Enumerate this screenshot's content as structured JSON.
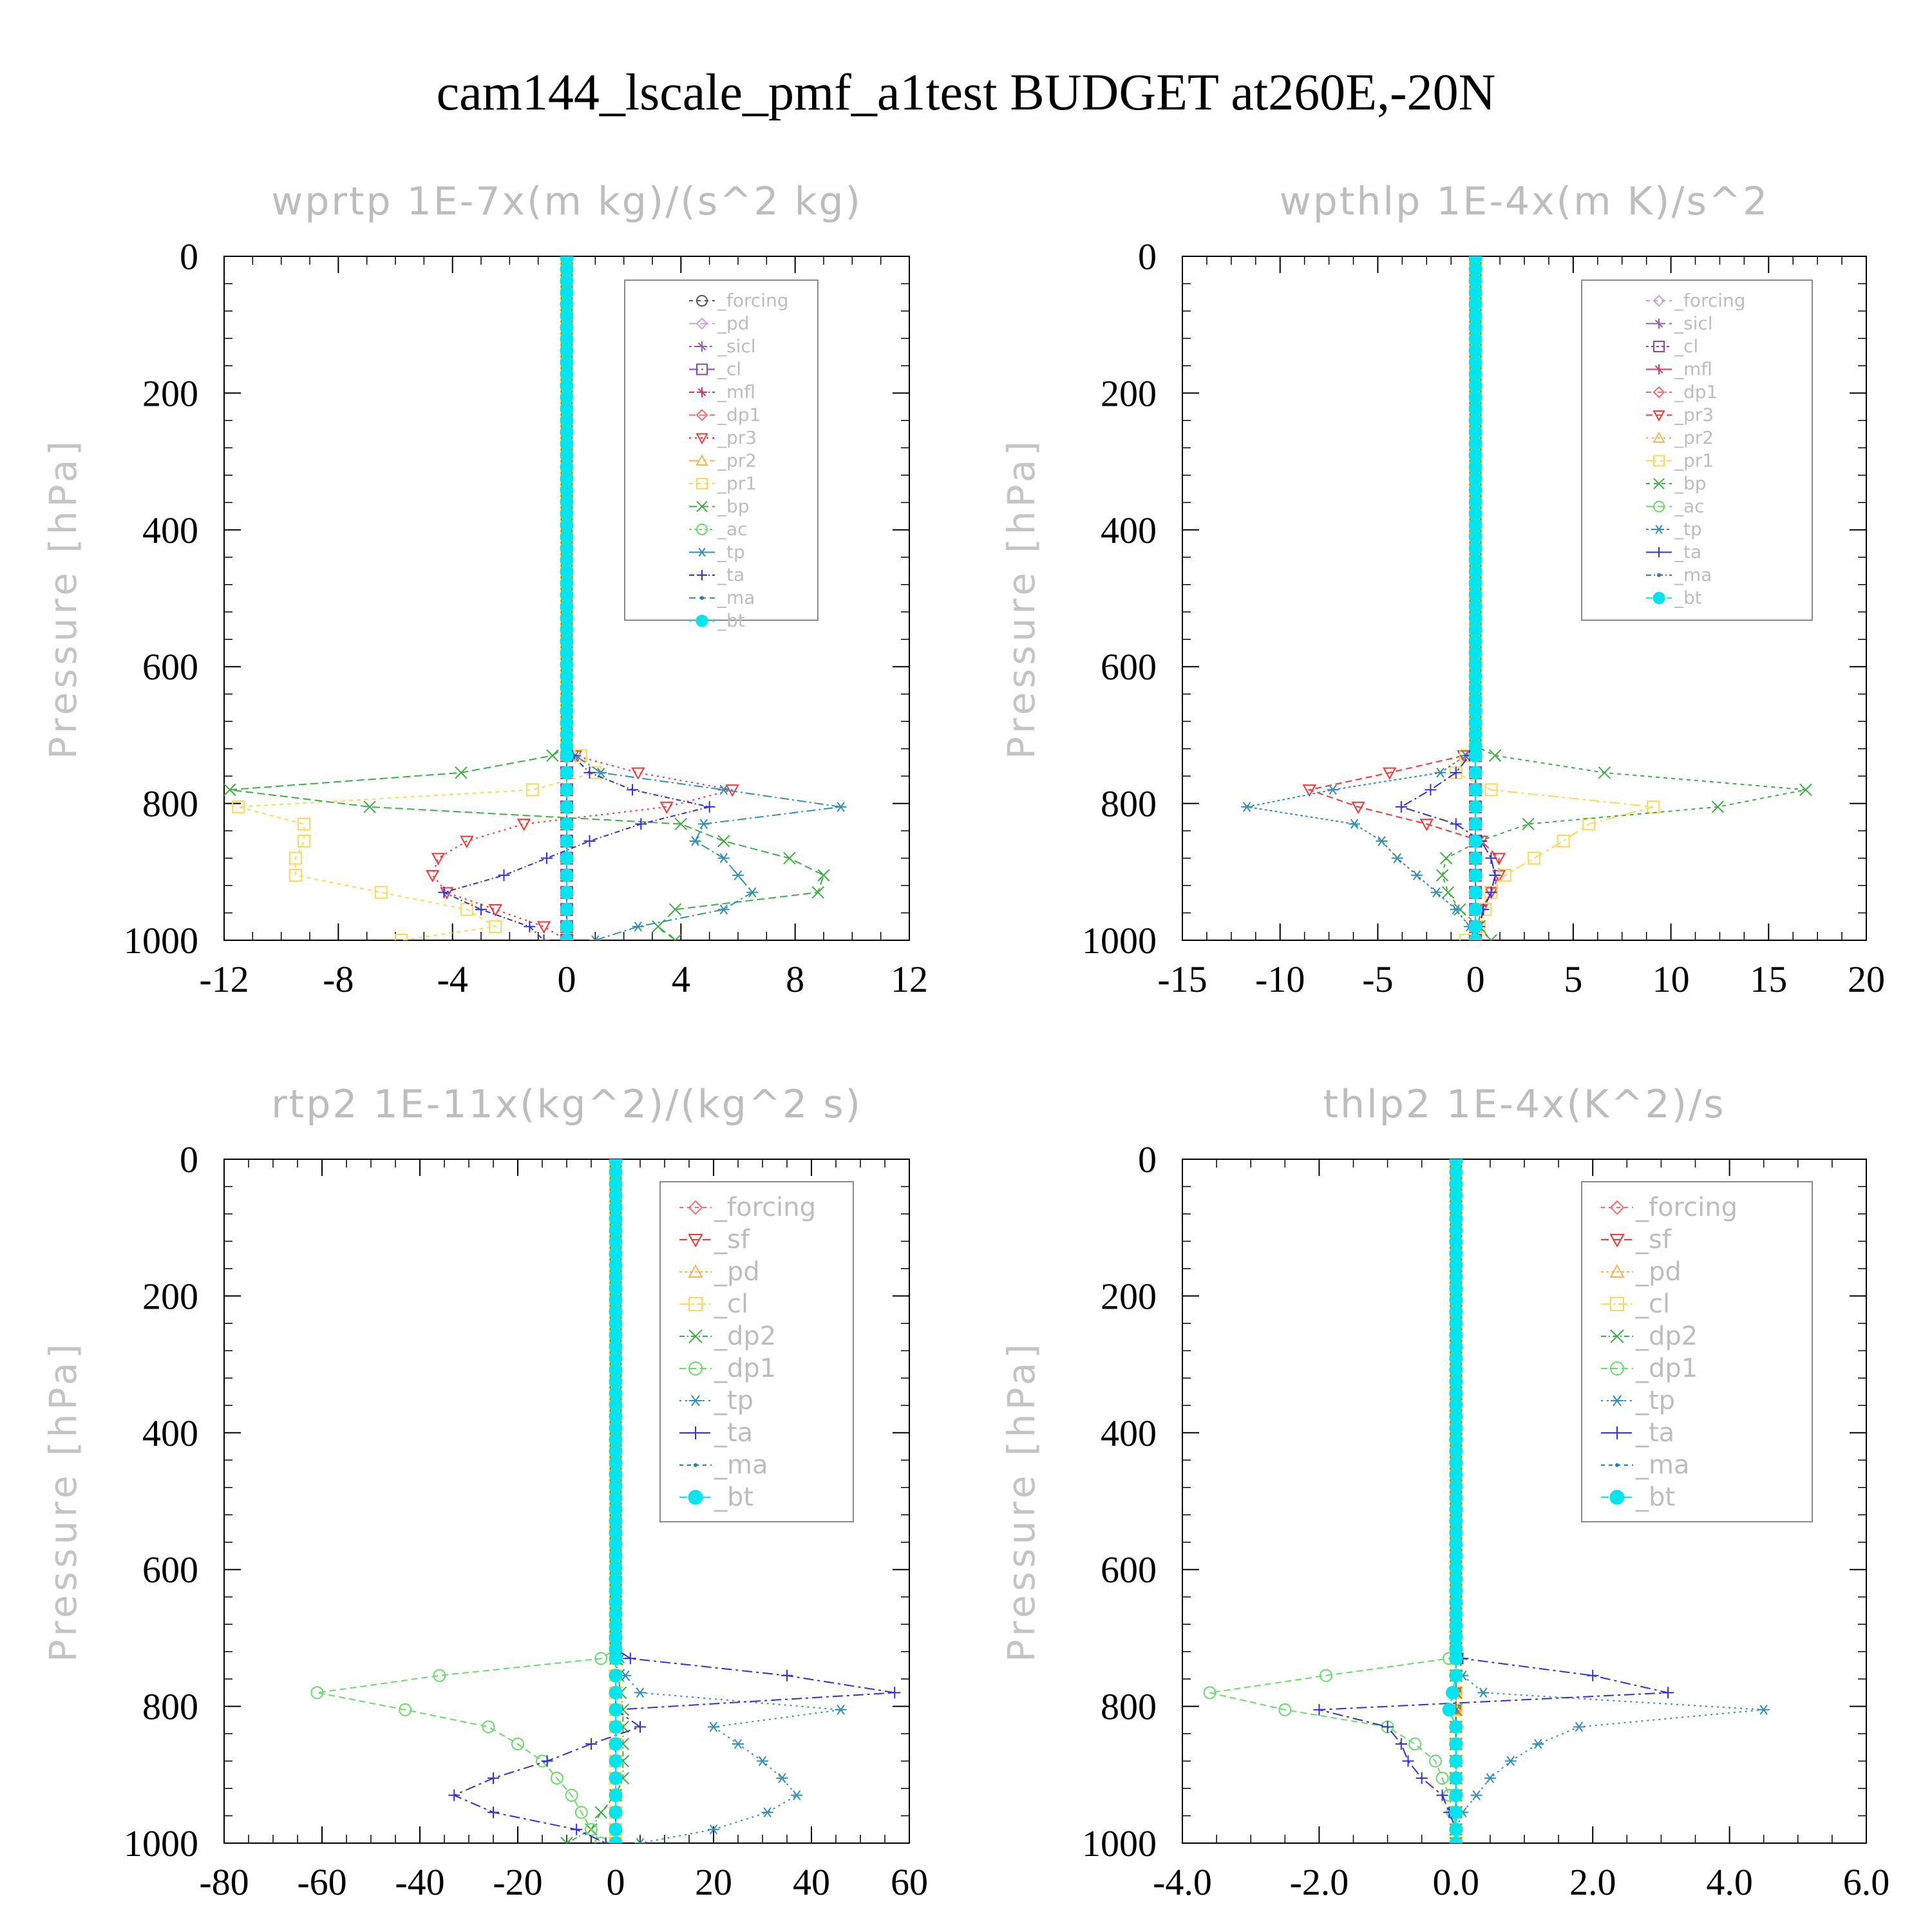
{
  "figure_title": "cam144_lscale_pmf_a1test  BUDGET at260E,-20N",
  "chart_data": [
    {
      "type": "line",
      "title": "wprtp   1E-7x(m kg)/(s^2 kg)",
      "ylabel": "Pressure [hPa]",
      "xlim": [
        -12,
        12
      ],
      "ylim": [
        1000,
        0
      ],
      "y_inverted": true,
      "xticks": [
        "-12",
        "-8",
        "-4",
        "0",
        "4",
        "8",
        "12"
      ],
      "yticks": [
        "0",
        "200",
        "400",
        "600",
        "800",
        "1000"
      ],
      "legend_position": "upper-right",
      "pressure_levels": [
        730,
        755,
        780,
        805,
        830,
        855,
        880,
        905,
        930,
        955,
        980,
        1000
      ],
      "series": [
        {
          "name": "_forcing",
          "color": "#555555",
          "marker": "circle",
          "values": [
            0,
            0,
            0,
            0,
            0,
            0,
            0,
            0,
            0,
            0,
            0,
            0
          ]
        },
        {
          "name": "_pd",
          "color": "#c8a0e0",
          "marker": "diamond",
          "values": [
            0,
            0,
            0,
            0,
            0,
            0,
            0,
            0,
            0,
            0,
            0,
            0
          ]
        },
        {
          "name": "_sicl",
          "color": "#9b59b6",
          "marker": "star",
          "values": [
            0,
            0,
            0,
            0,
            0,
            0,
            0,
            0,
            0,
            0,
            0,
            0
          ]
        },
        {
          "name": "_cl",
          "color": "#8e44ad",
          "marker": "square",
          "values": [
            0,
            0,
            0,
            0,
            0,
            0,
            0,
            0,
            0,
            0,
            0,
            0
          ]
        },
        {
          "name": "_mfl",
          "color": "#d0357a",
          "marker": "star",
          "values": [
            0,
            0,
            0,
            0,
            0,
            0,
            0,
            0,
            0,
            0,
            0,
            0
          ]
        },
        {
          "name": "_dp1",
          "color": "#ff6b6b",
          "marker": "diamond",
          "values": [
            0,
            0,
            0,
            0,
            0,
            0,
            0,
            0,
            0,
            0,
            0,
            0
          ]
        },
        {
          "name": "_pr3",
          "color": "#ff3333",
          "marker": "triangle-down",
          "values": [
            0.3,
            2.5,
            5.8,
            3.5,
            -1.5,
            -3.5,
            -4.5,
            -4.7,
            -4.2,
            -2.5,
            -0.8,
            0
          ]
        },
        {
          "name": "_pr2",
          "color": "#ffb347",
          "marker": "triangle-up",
          "values": [
            0,
            0,
            0,
            0,
            0,
            0,
            0,
            0,
            0,
            0,
            0,
            0
          ]
        },
        {
          "name": "_pr1",
          "color": "#ffd84d",
          "marker": "square",
          "values": [
            0.5,
            1.0,
            -1.2,
            -11.5,
            -9.2,
            -9.2,
            -9.5,
            -9.5,
            -6.5,
            -3.5,
            -2.5,
            -5.8
          ]
        },
        {
          "name": "_bp",
          "color": "#3cb043",
          "marker": "x",
          "values": [
            -0.5,
            -3.7,
            -11.8,
            -6.9,
            4.0,
            5.5,
            7.8,
            9.0,
            8.8,
            3.8,
            3.2,
            3.8
          ]
        },
        {
          "name": "_ac",
          "color": "#66dd66",
          "marker": "circle",
          "values": [
            0,
            0,
            0,
            0,
            0,
            0,
            0,
            0,
            0,
            0,
            0,
            0
          ]
        },
        {
          "name": "_tp",
          "color": "#2f8fbf",
          "marker": "asterisk",
          "values": [
            0.3,
            1.2,
            5.5,
            9.6,
            4.8,
            4.5,
            5.5,
            6.0,
            6.5,
            5.5,
            2.5,
            1.0
          ]
        },
        {
          "name": "_ta",
          "color": "#3030e0",
          "marker": "plus",
          "values": [
            0.2,
            0.8,
            2.3,
            5.0,
            2.6,
            0.8,
            -0.7,
            -2.2,
            -4.3,
            -3.0,
            -1.3,
            -0.8
          ]
        },
        {
          "name": "_ma",
          "color": "#2a7bb5",
          "marker": "dot",
          "values": [
            0,
            0,
            0,
            0,
            0,
            0,
            0,
            0,
            0,
            0,
            0,
            0
          ]
        },
        {
          "name": "_bt",
          "color": "#00e5ee",
          "marker": "filled-circle",
          "values": [
            0,
            0,
            0,
            0,
            0,
            0,
            0,
            0,
            0,
            0,
            0,
            0
          ]
        }
      ]
    },
    {
      "type": "line",
      "title": "wpthlp   1E-4x(m K)/s^2",
      "ylabel": "Pressure [hPa]",
      "xlim": [
        -15,
        20
      ],
      "ylim": [
        1000,
        0
      ],
      "y_inverted": true,
      "xticks": [
        "-15",
        "-10",
        "-5",
        "0",
        "5",
        "10",
        "15",
        "20"
      ],
      "yticks": [
        "0",
        "200",
        "400",
        "600",
        "800",
        "1000"
      ],
      "legend_position": "upper-right",
      "pressure_levels": [
        730,
        755,
        780,
        805,
        830,
        855,
        880,
        905,
        930,
        955,
        980,
        1000
      ],
      "series": [
        {
          "name": "_forcing",
          "color": "#c8a0e0",
          "marker": "diamond",
          "values": [
            0,
            0,
            0,
            0,
            0,
            0,
            0,
            0,
            0,
            0,
            0,
            0
          ]
        },
        {
          "name": "_sicl",
          "color": "#9b59b6",
          "marker": "star",
          "values": [
            0,
            0,
            0,
            0,
            0,
            0,
            0,
            0,
            0,
            0,
            0,
            0
          ]
        },
        {
          "name": "_cl",
          "color": "#8e44ad",
          "marker": "square",
          "values": [
            0,
            0,
            0,
            0,
            0,
            0,
            0,
            0,
            0,
            0,
            0,
            0
          ]
        },
        {
          "name": "_mfl",
          "color": "#d0357a",
          "marker": "star",
          "values": [
            0,
            0,
            0,
            0,
            0,
            0,
            0,
            0,
            0,
            0,
            0,
            0
          ]
        },
        {
          "name": "_dp1",
          "color": "#ff6b6b",
          "marker": "diamond",
          "values": [
            0,
            0,
            0,
            0,
            0,
            0,
            0,
            0,
            0,
            0,
            0,
            0
          ]
        },
        {
          "name": "_pr3",
          "color": "#ff3333",
          "marker": "triangle-down",
          "values": [
            -0.6,
            -4.4,
            -8.5,
            -6.0,
            -2.5,
            0.3,
            1.2,
            1.2,
            0.8,
            0.3,
            0.1,
            0
          ]
        },
        {
          "name": "_pr2",
          "color": "#ffb347",
          "marker": "triangle-up",
          "values": [
            0,
            0,
            0,
            0,
            0,
            0,
            0,
            0,
            0,
            0,
            0,
            0
          ]
        },
        {
          "name": "_pr1",
          "color": "#ffd84d",
          "marker": "square",
          "values": [
            -0.5,
            -1.0,
            0.8,
            9.1,
            5.8,
            4.5,
            3.0,
            1.5,
            0.8,
            0.5,
            0.2,
            -0.5
          ]
        },
        {
          "name": "_bp",
          "color": "#3cb043",
          "marker": "x",
          "values": [
            1.0,
            6.6,
            16.9,
            12.4,
            2.7,
            0.2,
            -1.5,
            -1.7,
            -1.4,
            -0.8,
            0.2,
            0.8
          ]
        },
        {
          "name": "_ac",
          "color": "#66dd66",
          "marker": "circle",
          "values": [
            0,
            0,
            0,
            0,
            0,
            0,
            0,
            0,
            0,
            0,
            0,
            0
          ]
        },
        {
          "name": "_tp",
          "color": "#2f8fbf",
          "marker": "asterisk",
          "values": [
            -0.5,
            -1.8,
            -7.3,
            -11.7,
            -6.2,
            -4.8,
            -4.0,
            -3.0,
            -2.0,
            -1.0,
            -0.3,
            0
          ]
        },
        {
          "name": "_ta",
          "color": "#3030e0",
          "marker": "plus",
          "values": [
            -0.3,
            -1.0,
            -2.3,
            -3.8,
            -1.0,
            0.3,
            0.8,
            1.0,
            0.8,
            0.4,
            0.2,
            0
          ]
        },
        {
          "name": "_ma",
          "color": "#2a7bb5",
          "marker": "dot",
          "values": [
            0,
            0,
            0,
            0,
            0,
            0,
            0,
            0,
            0,
            0,
            0,
            0
          ]
        },
        {
          "name": "_bt",
          "color": "#00e5ee",
          "marker": "filled-circle",
          "values": [
            0,
            0,
            0,
            0,
            0,
            0,
            0,
            0,
            0,
            0,
            0,
            0
          ]
        }
      ]
    },
    {
      "type": "line",
      "title": "rtp2   1E-11x(kg^2)/(kg^2 s)",
      "ylabel": "Pressure [hPa]",
      "xlim": [
        -80,
        60
      ],
      "ylim": [
        1000,
        0
      ],
      "y_inverted": true,
      "xticks": [
        "-80",
        "-60",
        "-40",
        "-20",
        "0",
        "20",
        "40",
        "60"
      ],
      "yticks": [
        "0",
        "200",
        "400",
        "600",
        "800",
        "1000"
      ],
      "legend_position": "upper-right",
      "pressure_levels": [
        730,
        755,
        780,
        805,
        830,
        855,
        880,
        905,
        930,
        955,
        980,
        1000
      ],
      "series": [
        {
          "name": "_forcing",
          "color": "#ff6b6b",
          "marker": "diamond",
          "values": [
            0,
            0,
            0,
            0,
            0,
            0,
            0,
            0,
            0,
            0,
            0,
            0
          ]
        },
        {
          "name": "_sf",
          "color": "#ff3333",
          "marker": "triangle-down",
          "values": [
            0,
            0,
            0,
            0,
            0,
            0,
            0,
            0,
            0,
            0,
            0,
            0
          ]
        },
        {
          "name": "_pd",
          "color": "#ffb347",
          "marker": "triangle-up",
          "values": [
            0,
            0,
            0,
            0,
            0,
            0,
            0,
            0,
            0,
            0,
            0,
            0
          ]
        },
        {
          "name": "_cl",
          "color": "#ffd84d",
          "marker": "square",
          "values": [
            0,
            0,
            0,
            0,
            0,
            0,
            0,
            0,
            0,
            0,
            0,
            0
          ]
        },
        {
          "name": "_dp2",
          "color": "#3cb043",
          "marker": "x",
          "values": [
            0,
            0.5,
            1,
            1.5,
            1.5,
            1.5,
            1.5,
            1.5,
            0,
            -3,
            -5,
            -10
          ]
        },
        {
          "name": "_dp1",
          "color": "#66dd66",
          "marker": "circle",
          "values": [
            -3,
            -36,
            -61,
            -43,
            -26,
            -20,
            -15,
            -12,
            -9,
            -7,
            -5,
            -3
          ]
        },
        {
          "name": "_tp",
          "color": "#2f8fbf",
          "marker": "asterisk",
          "values": [
            1,
            2,
            5,
            46,
            20,
            25,
            30,
            34,
            37,
            31,
            20,
            5
          ]
        },
        {
          "name": "_ta",
          "color": "#3030e0",
          "marker": "plus",
          "values": [
            3,
            35,
            57,
            0,
            5,
            -5,
            -14,
            -25,
            -33,
            -25,
            -8,
            -2
          ]
        },
        {
          "name": "_ma",
          "color": "#2a7bb5",
          "marker": "dot",
          "values": [
            0,
            0,
            0,
            0,
            0,
            0,
            0,
            0,
            0,
            0,
            0,
            0
          ]
        },
        {
          "name": "_bt",
          "color": "#00e5ee",
          "marker": "filled-circle",
          "values": [
            0,
            0,
            0,
            0,
            0,
            0,
            0,
            0,
            0,
            0,
            0,
            0
          ]
        }
      ]
    },
    {
      "type": "line",
      "title": "thlp2   1E-4x(K^2)/s",
      "ylabel": "Pressure [hPa]",
      "xlim": [
        -4.0,
        6.0
      ],
      "ylim": [
        1000,
        0
      ],
      "y_inverted": true,
      "xticks": [
        "-4.0",
        "-2.0",
        "0.0",
        "2.0",
        "4.0",
        "6.0"
      ],
      "yticks": [
        "0",
        "200",
        "400",
        "600",
        "800",
        "1000"
      ],
      "legend_position": "upper-right",
      "pressure_levels": [
        730,
        755,
        780,
        805,
        830,
        855,
        880,
        905,
        930,
        955,
        980,
        1000
      ],
      "series": [
        {
          "name": "_forcing",
          "color": "#ff6b6b",
          "marker": "diamond",
          "values": [
            0,
            0,
            0,
            0,
            0,
            0,
            0,
            0,
            0,
            0,
            0,
            0
          ]
        },
        {
          "name": "_sf",
          "color": "#ff3333",
          "marker": "triangle-down",
          "values": [
            0,
            0,
            0,
            0,
            0,
            0,
            0,
            0,
            0,
            0,
            0,
            0
          ]
        },
        {
          "name": "_pd",
          "color": "#ffb347",
          "marker": "triangle-up",
          "values": [
            0,
            0,
            0,
            0,
            0,
            0,
            0,
            0,
            0,
            0,
            0,
            0
          ]
        },
        {
          "name": "_cl",
          "color": "#ffd84d",
          "marker": "square",
          "values": [
            0,
            0,
            0,
            0,
            0,
            0,
            0,
            0,
            0,
            0,
            0,
            0
          ]
        },
        {
          "name": "_dp2",
          "color": "#3cb043",
          "marker": "x",
          "values": [
            0,
            0,
            0,
            0,
            0,
            0,
            0,
            0,
            0,
            0,
            0,
            0
          ]
        },
        {
          "name": "_dp1",
          "color": "#66dd66",
          "marker": "circle",
          "values": [
            -0.1,
            -1.9,
            -3.6,
            -2.5,
            -1.0,
            -0.6,
            -0.3,
            -0.2,
            -0.1,
            -0.05,
            0,
            0
          ]
        },
        {
          "name": "_tp",
          "color": "#2f8fbf",
          "marker": "asterisk",
          "values": [
            0.05,
            0.1,
            0.4,
            4.5,
            1.8,
            1.2,
            0.8,
            0.5,
            0.3,
            0.1,
            0,
            0
          ]
        },
        {
          "name": "_ta",
          "color": "#3030e0",
          "marker": "plus",
          "values": [
            0.1,
            2.0,
            3.1,
            -2.0,
            -1.0,
            -0.8,
            -0.7,
            -0.5,
            -0.2,
            -0.1,
            0,
            0
          ]
        },
        {
          "name": "_ma",
          "color": "#2a7bb5",
          "marker": "dot",
          "values": [
            0,
            0,
            0,
            0,
            0,
            0,
            0,
            0,
            0,
            0,
            0,
            0
          ]
        },
        {
          "name": "_bt",
          "color": "#00e5ee",
          "marker": "filled-circle",
          "values": [
            0,
            0,
            -0.05,
            -0.1,
            0,
            0,
            0,
            0,
            0,
            0,
            0,
            0
          ]
        }
      ]
    }
  ]
}
